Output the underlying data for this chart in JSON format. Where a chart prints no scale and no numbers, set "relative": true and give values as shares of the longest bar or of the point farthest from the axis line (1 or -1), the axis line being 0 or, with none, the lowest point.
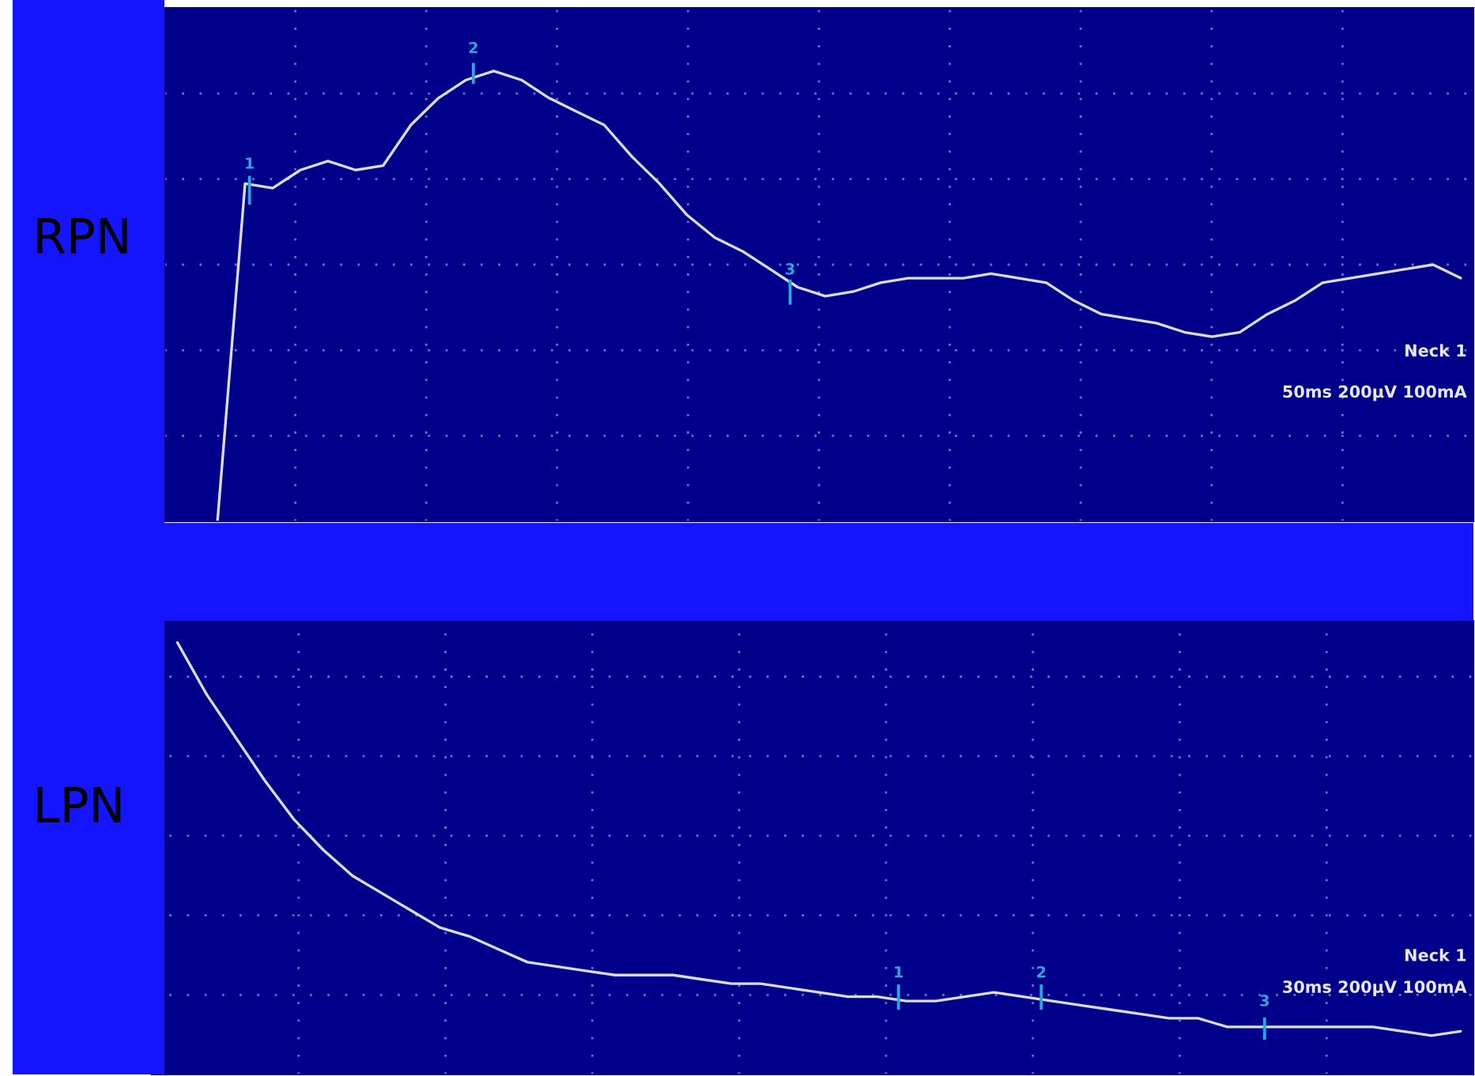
{
  "chart_data": [
    {
      "type": "line",
      "ylabel": "RPN",
      "relative": true,
      "grid": true,
      "categories": [
        null,
        null,
        null,
        null,
        null,
        null,
        null,
        null,
        null,
        null,
        null,
        null,
        null,
        null,
        null,
        null,
        null,
        null,
        null,
        null,
        null,
        null,
        null,
        null,
        null,
        null,
        null,
        null,
        null,
        null,
        null,
        null,
        null,
        null,
        null,
        null,
        null,
        null,
        null,
        null,
        null,
        null,
        null,
        null,
        null,
        null,
        null
      ],
      "series": [
        {
          "color": "#dcdcec",
          "values": [
            null,
            0,
            0.75,
            0.74,
            0.78,
            0.8,
            0.78,
            0.79,
            0.88,
            0.94,
            0.98,
            1,
            0.98,
            0.94,
            0.91,
            0.88,
            0.81,
            0.75,
            0.68,
            0.63,
            0.6,
            0.56,
            0.52,
            0.5,
            0.51,
            0.53,
            0.54,
            0.54,
            0.54,
            0.55,
            0.54,
            0.53,
            0.49,
            0.46,
            0.45,
            0.44,
            0.42,
            0.41,
            0.42,
            0.46,
            0.49,
            0.53,
            0.54,
            0.55,
            0.56,
            0.57,
            0.54
          ]
        }
      ],
      "annotations": [
        "1",
        "2",
        "3",
        "Neck 1",
        "50ms 200µV 100mA"
      ]
    },
    {
      "type": "line",
      "ylabel": "LPN",
      "relative": true,
      "grid": true,
      "categories": [
        null,
        null,
        null,
        null,
        null,
        null,
        null,
        null,
        null,
        null,
        null,
        null,
        null,
        null,
        null,
        null,
        null,
        null,
        null,
        null,
        null,
        null,
        null,
        null,
        null,
        null,
        null,
        null,
        null,
        null,
        null,
        null,
        null,
        null,
        null,
        null,
        null,
        null,
        null,
        null,
        null,
        null,
        null,
        null,
        null
      ],
      "series": [
        {
          "color": "#dcdcec",
          "values": [
            1,
            0.88,
            0.78,
            0.68,
            0.59,
            0.52,
            0.46,
            0.42,
            0.38,
            0.34,
            0.32,
            0.29,
            0.26,
            0.25,
            0.24,
            0.23,
            0.23,
            0.23,
            0.22,
            0.21,
            0.21,
            0.2,
            0.19,
            0.18,
            0.18,
            0.17,
            0.17,
            0.18,
            0.19,
            0.18,
            0.17,
            0.16,
            0.15,
            0.14,
            0.13,
            0.13,
            0.11,
            0.11,
            0.11,
            0.11,
            0.11,
            0.11,
            0.1,
            0.09,
            0.1
          ]
        }
      ],
      "annotations": [
        "1",
        "2",
        "3",
        "Neck 1",
        "30ms 200µV 100mA"
      ]
    }
  ]
}
